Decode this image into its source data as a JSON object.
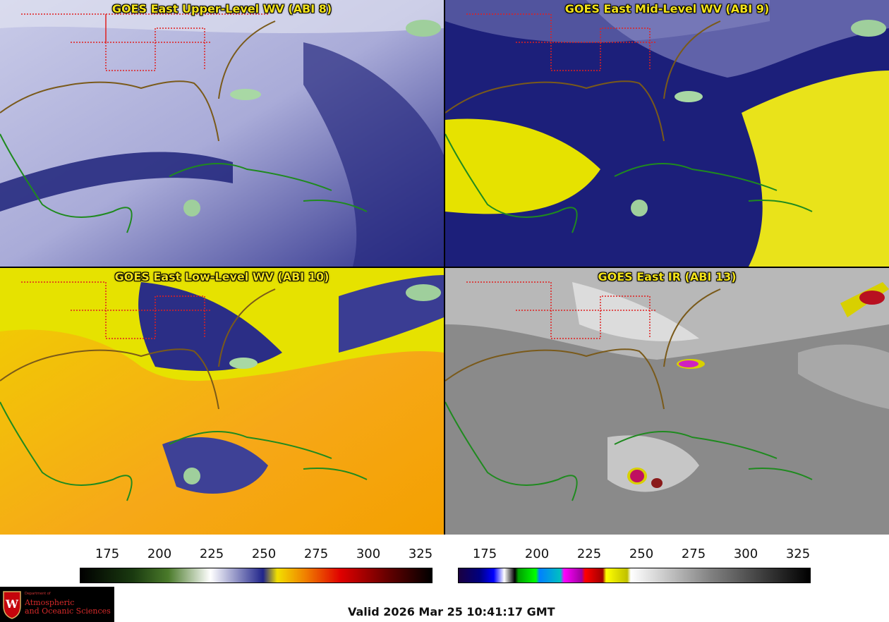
{
  "panels": {
    "p1_title": "GOES East Upper-Level WV (ABI 8)",
    "p2_title": "GOES East Mid-Level WV (ABI 9)",
    "p3_title": "GOES East Low-Level WV (ABI 10)",
    "p4_title": "GOES East IR (ABI 13)"
  },
  "colorbars": {
    "wv": {
      "ticks": [
        "175",
        "200",
        "225",
        "250",
        "275",
        "300",
        "325"
      ]
    },
    "ir": {
      "ticks": [
        "175",
        "200",
        "225",
        "250",
        "275",
        "300",
        "325"
      ]
    }
  },
  "footer": {
    "valid": "Valid 2026 Mar 25 10:41:17 GMT",
    "logo_dept": "Department of",
    "logo_line1": "Atmospheric",
    "logo_line2": "and Oceanic Sciences"
  },
  "colors": {
    "title": "#f2e21a",
    "border_state": "#e02020",
    "coast": "#1f8a1f"
  }
}
